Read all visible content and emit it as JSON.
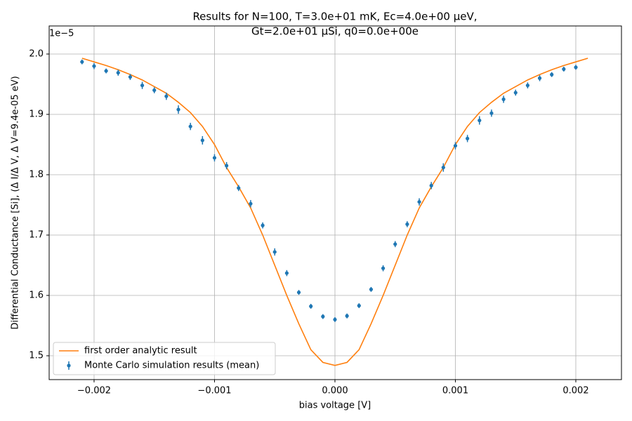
{
  "chart_data": {
    "type": "line",
    "title": [
      "Results for N=100, T=3.0e+01 mK, Ec=4.0e+00 μeV,",
      "Gt=2.0e+01 μSi, q0=0.0e+00e"
    ],
    "xlabel": "bias voltage [V]",
    "ylabel": "Differential Conductance [Si], (Δ I/Δ V, Δ V=9.4e-05 eV)",
    "y_offset_label": "1e−5",
    "xlim": [
      -0.002373,
      0.002379
    ],
    "ylim": [
      1.4605,
      2.0465
    ],
    "xticks": [
      {
        "value": -0.002,
        "label": "−0.002"
      },
      {
        "value": -0.001,
        "label": "−0.001"
      },
      {
        "value": 0,
        "label": "0.000"
      },
      0.001,
      0.002
    ],
    "yticks": [
      {
        "value": 1.5,
        "label": "1.5"
      },
      {
        "value": 1.6,
        "label": "1.6"
      },
      {
        "value": 1.7,
        "label": "1.7"
      },
      {
        "value": 1.8,
        "label": "1.8"
      },
      {
        "value": 1.9,
        "label": "1.9"
      },
      {
        "value": 2.0,
        "label": "2.0"
      }
    ],
    "grid": true,
    "legend": "lower left",
    "series": [
      {
        "name": "first order analytic result",
        "type": "line",
        "color": "#ff7f0e",
        "x": [
          -0.0021,
          -0.002,
          -0.0019,
          -0.0018,
          -0.0017,
          -0.0016,
          -0.0015,
          -0.0014,
          -0.0013,
          -0.0012,
          -0.0011,
          -0.001,
          -0.0009,
          -0.0008,
          -0.0007,
          -0.0006,
          -0.0005,
          -0.0004,
          -0.0003,
          -0.0002,
          -0.0001,
          0,
          0.0001,
          0.0002,
          0.0003,
          0.0004,
          0.0005,
          0.0006,
          0.0007,
          0.0008,
          0.0009,
          0.001,
          0.0011,
          0.0012,
          0.0013,
          0.0014,
          0.0015,
          0.0016,
          0.0017,
          0.0018,
          0.0019,
          0.002,
          0.0021
        ],
        "values": [
          1.993,
          1.987,
          1.981,
          1.974,
          1.966,
          1.957,
          1.946,
          1.935,
          1.92,
          1.903,
          1.88,
          1.85,
          1.812,
          1.78,
          1.745,
          1.7,
          1.65,
          1.6,
          1.553,
          1.51,
          1.489,
          1.484,
          1.489,
          1.51,
          1.553,
          1.6,
          1.65,
          1.7,
          1.745,
          1.78,
          1.812,
          1.85,
          1.88,
          1.903,
          1.92,
          1.935,
          1.946,
          1.957,
          1.966,
          1.974,
          1.981,
          1.987,
          1.993
        ]
      },
      {
        "name": "Monte Carlo simulation results (mean)",
        "type": "errorbar",
        "color": "#1f77b4",
        "x": [
          -0.0021,
          -0.002,
          -0.0019,
          -0.0018,
          -0.0017,
          -0.0016,
          -0.0015,
          -0.0014,
          -0.0013,
          -0.0012,
          -0.0011,
          -0.001,
          -0.0009,
          -0.0008,
          -0.0007,
          -0.0006,
          -0.0005,
          -0.0004,
          -0.0003,
          -0.0002,
          -0.0001,
          0,
          0.0001,
          0.0002,
          0.0003,
          0.0004,
          0.0005,
          0.0006,
          0.0007,
          0.0008,
          0.0009,
          0.001,
          0.0011,
          0.0012,
          0.0013,
          0.0014,
          0.0015,
          0.0016,
          0.0017,
          0.0018,
          0.0019,
          0.002
        ],
        "values": [
          1.987,
          1.98,
          1.972,
          1.969,
          1.962,
          1.948,
          1.94,
          1.93,
          1.908,
          1.88,
          1.857,
          1.828,
          1.815,
          1.778,
          1.752,
          1.716,
          1.672,
          1.637,
          1.605,
          1.582,
          1.565,
          1.56,
          1.566,
          1.583,
          1.61,
          1.645,
          1.685,
          1.718,
          1.755,
          1.782,
          1.812,
          1.848,
          1.86,
          1.89,
          1.902,
          1.925,
          1.936,
          1.948,
          1.96,
          1.966,
          1.975,
          1.978
        ],
        "errors": [
          0.004,
          0.005,
          0.004,
          0.005,
          0.005,
          0.006,
          0.005,
          0.006,
          0.007,
          0.006,
          0.007,
          0.006,
          0.006,
          0.005,
          0.006,
          0.005,
          0.006,
          0.005,
          0.004,
          0.004,
          0.004,
          0.004,
          0.004,
          0.004,
          0.004,
          0.005,
          0.005,
          0.005,
          0.006,
          0.006,
          0.007,
          0.006,
          0.006,
          0.007,
          0.006,
          0.006,
          0.005,
          0.005,
          0.005,
          0.004,
          0.004,
          0.004
        ]
      }
    ]
  }
}
